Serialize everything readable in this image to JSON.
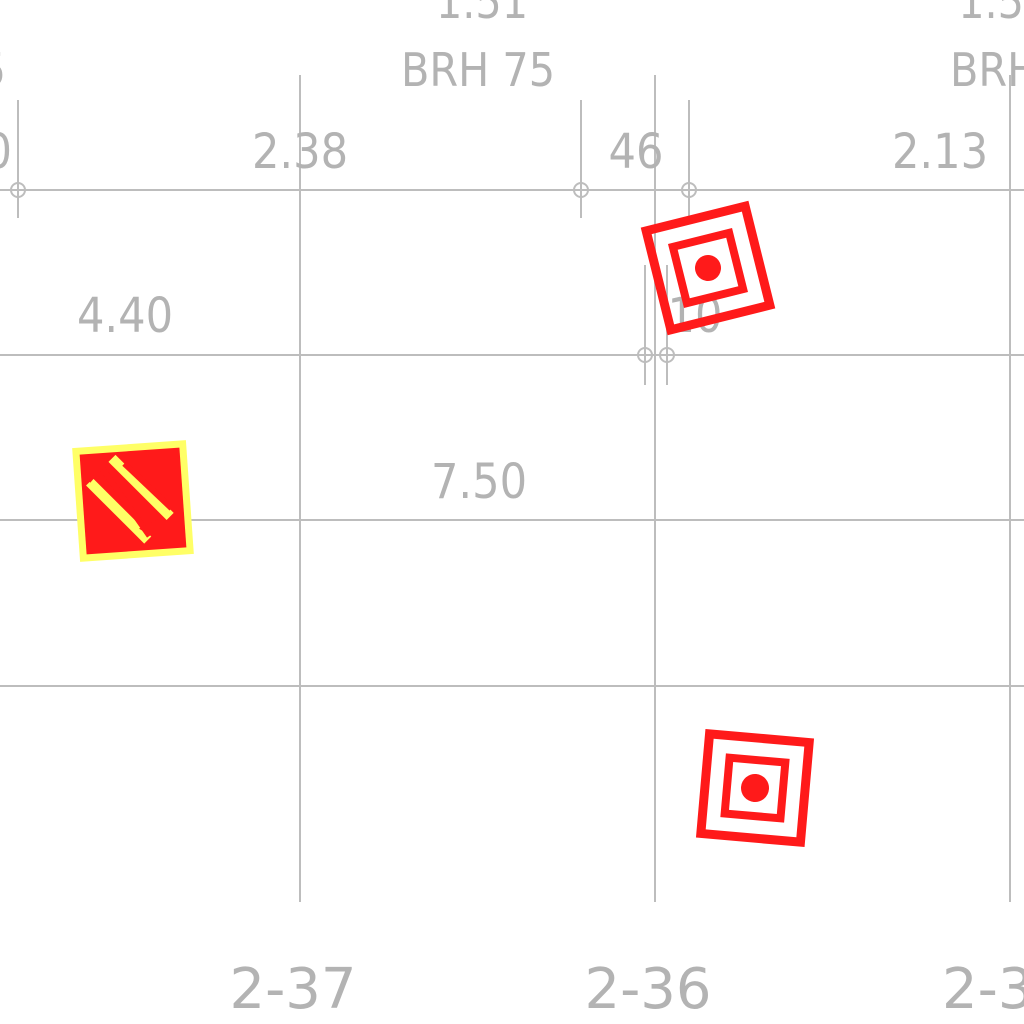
{
  "top_labels": {
    "value_1": "1.51",
    "value_2": "1.5",
    "left_fragment": "5",
    "brh_1": "BRH 75",
    "brh_2": "BRH"
  },
  "row_labels": {
    "left_zero": "0",
    "value_238": "2.38",
    "value_46": "46",
    "value_213": "2.13",
    "value_440": "4.40",
    "value_10": "10",
    "value_750": "7.50"
  },
  "column_labels": [
    "2-37",
    "2-36",
    "2-3"
  ],
  "units": [
    {
      "name": "Target marker A",
      "icon": "target-icon",
      "color": "#ff1a1a"
    },
    {
      "name": "Target marker B",
      "icon": "target-icon",
      "color": "#ff1a1a"
    },
    {
      "name": "Artillery unit",
      "icon": "artillery-icon",
      "color": "#ff1a1a",
      "accent": "#ffff66"
    }
  ]
}
